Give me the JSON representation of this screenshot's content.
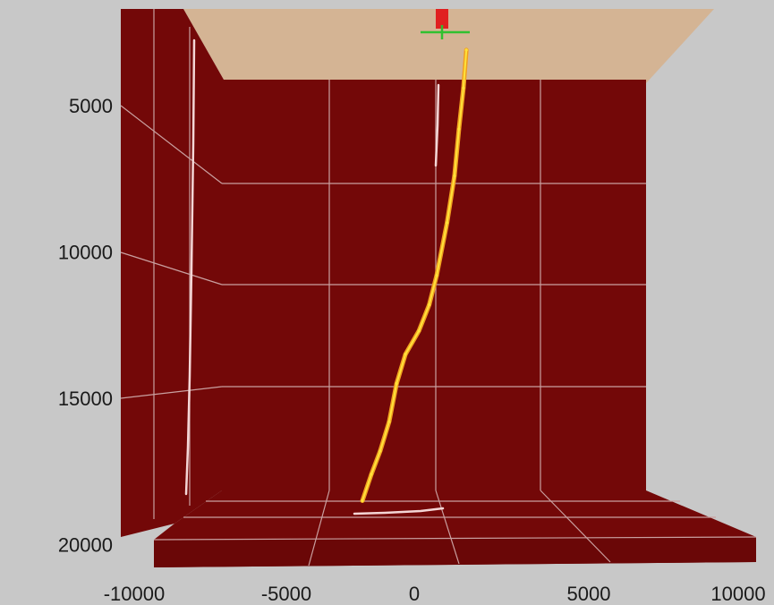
{
  "chart_data": {
    "type": "line",
    "projection": "3d-perspective",
    "xlim": [
      -10000,
      10000
    ],
    "ylim": [
      20000,
      0
    ],
    "x_ticks": [
      -10000,
      -5000,
      0,
      5000,
      10000
    ],
    "x_tick_labels": [
      "-10000",
      "-5000",
      "0",
      "5000",
      "10000"
    ],
    "y_ticks": [
      5000,
      10000,
      15000,
      20000
    ],
    "y_tick_labels": [
      "5000",
      "10000",
      "15000",
      "20000"
    ],
    "grid": true,
    "colors": {
      "background": "#c8c8c8",
      "walls": "#730808",
      "top_surface": "#d4b494",
      "grid": "#c9a0a0",
      "trajectory": "#f0a020",
      "trajectory_core": "#ffe23a",
      "projection": "#f4d6d6",
      "rig": "#e02020",
      "marker": "#30c030"
    },
    "series": [
      {
        "x": [
          1000,
          900,
          750,
          600,
          350,
          0,
          -250,
          -600,
          -1050,
          -1350,
          -1600,
          -1900,
          -2200,
          -2500
        ],
        "y": [
          3100,
          4400,
          5800,
          7400,
          9000,
          10800,
          11800,
          12700,
          13500,
          14500,
          15800,
          16800,
          17600,
          18500
        ]
      }
    ]
  }
}
